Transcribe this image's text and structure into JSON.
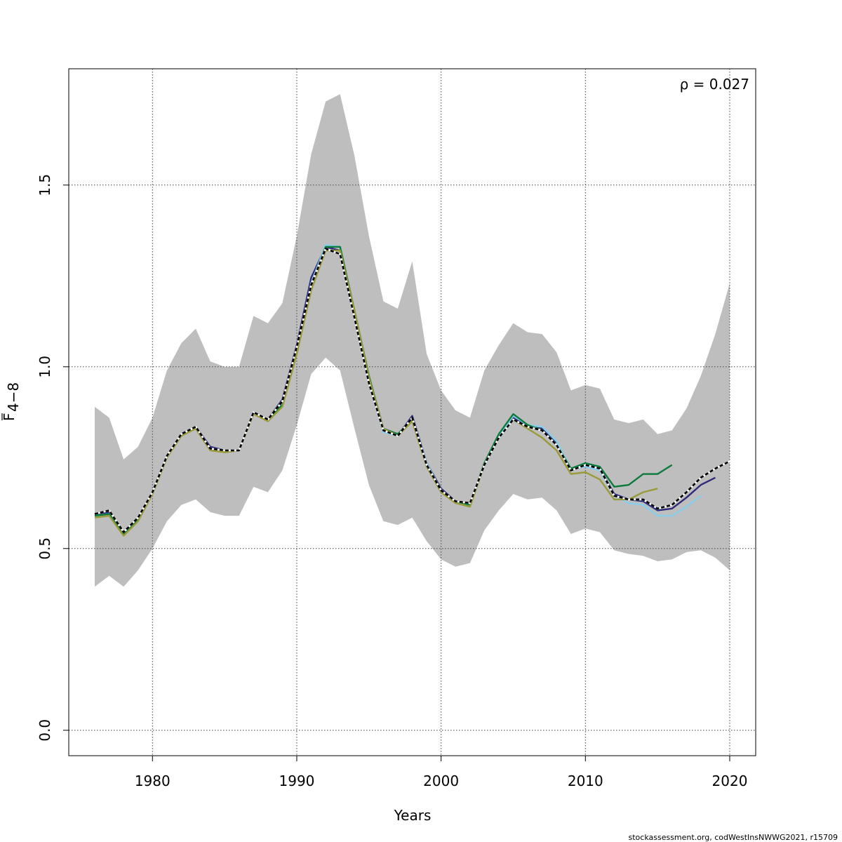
{
  "chart_data": {
    "type": "line",
    "xlabel": "Years",
    "ylabel_main": "F",
    "ylabel_sub": "4−8",
    "annotation": "ρ = 0.027",
    "footer": "stockassessment.org, codWestInsNWWG2021, r15709",
    "xlim": [
      1974.2,
      2021.8
    ],
    "ylim": [
      -0.07,
      1.82
    ],
    "x_ticks": [
      1980,
      1990,
      2000,
      2010,
      2020
    ],
    "x_tick_labels": [
      "1980",
      "1990",
      "2000",
      "2010",
      "2020"
    ],
    "y_ticks": [
      0.0,
      0.5,
      1.0,
      1.5
    ],
    "y_tick_labels": [
      "0.0",
      "0.5",
      "1.0",
      "1.5"
    ],
    "grid": true,
    "band": {
      "color": "#bebebe",
      "years": [
        1976,
        1977,
        1978,
        1979,
        1980,
        1981,
        1982,
        1983,
        1984,
        1985,
        1986,
        1987,
        1988,
        1989,
        1990,
        1991,
        1992,
        1993,
        1994,
        1995,
        1996,
        1997,
        1998,
        1999,
        2000,
        2001,
        2002,
        2003,
        2004,
        2005,
        2006,
        2007,
        2008,
        2009,
        2010,
        2011,
        2012,
        2013,
        2014,
        2015,
        2016,
        2017,
        2018,
        2019,
        2020
      ],
      "upper": [
        0.89,
        0.86,
        0.745,
        0.78,
        0.86,
        0.99,
        1.065,
        1.105,
        1.015,
        1.0,
        1.0,
        1.14,
        1.12,
        1.175,
        1.36,
        1.585,
        1.73,
        1.75,
        1.58,
        1.36,
        1.18,
        1.16,
        1.29,
        1.035,
        0.935,
        0.88,
        0.86,
        0.99,
        1.06,
        1.12,
        1.095,
        1.09,
        1.04,
        0.935,
        0.95,
        0.94,
        0.855,
        0.845,
        0.855,
        0.815,
        0.825,
        0.885,
        0.975,
        1.09,
        1.23
      ],
      "lower": [
        0.395,
        0.425,
        0.395,
        0.44,
        0.5,
        0.575,
        0.62,
        0.635,
        0.6,
        0.59,
        0.59,
        0.67,
        0.655,
        0.715,
        0.84,
        0.98,
        1.025,
        0.99,
        0.83,
        0.675,
        0.575,
        0.565,
        0.585,
        0.52,
        0.47,
        0.45,
        0.46,
        0.55,
        0.605,
        0.65,
        0.635,
        0.64,
        0.605,
        0.54,
        0.555,
        0.545,
        0.495,
        0.485,
        0.48,
        0.465,
        0.47,
        0.49,
        0.495,
        0.475,
        0.44
      ]
    },
    "series": [
      {
        "color": "#000000",
        "dash": true,
        "years": [
          1976,
          1977,
          1978,
          1979,
          1980,
          1981,
          1982,
          1983,
          1984,
          1985,
          1986,
          1987,
          1988,
          1989,
          1990,
          1991,
          1992,
          1993,
          1994,
          1995,
          1996,
          1997,
          1998,
          1999,
          2000,
          2001,
          2002,
          2003,
          2004,
          2005,
          2006,
          2007,
          2008,
          2009,
          2010,
          2011,
          2012,
          2013,
          2014,
          2015,
          2016,
          2017,
          2018,
          2019,
          2020
        ],
        "values": [
          0.595,
          0.605,
          0.545,
          0.585,
          0.655,
          0.755,
          0.815,
          0.835,
          0.775,
          0.77,
          0.77,
          0.875,
          0.855,
          0.905,
          1.055,
          1.225,
          1.325,
          1.31,
          1.135,
          0.955,
          0.825,
          0.81,
          0.86,
          0.73,
          0.66,
          0.63,
          0.625,
          0.73,
          0.805,
          0.855,
          0.835,
          0.825,
          0.785,
          0.715,
          0.73,
          0.72,
          0.645,
          0.635,
          0.635,
          0.61,
          0.62,
          0.655,
          0.695,
          0.72,
          0.74
        ]
      },
      {
        "color": "#2e2b7a",
        "dash": false,
        "years": [
          1976,
          1977,
          1978,
          1979,
          1980,
          1981,
          1982,
          1983,
          1984,
          1985,
          1986,
          1987,
          1988,
          1989,
          1990,
          1991,
          1992,
          1993,
          1994,
          1995,
          1996,
          1997,
          1998,
          1999,
          2000,
          2001,
          2002,
          2003,
          2004,
          2005,
          2006,
          2007,
          2008,
          2009,
          2010,
          2011,
          2012,
          2013,
          2014,
          2015,
          2016,
          2017,
          2018,
          2019
        ],
        "values": [
          0.595,
          0.6,
          0.545,
          0.585,
          0.655,
          0.755,
          0.815,
          0.835,
          0.78,
          0.77,
          0.77,
          0.875,
          0.855,
          0.91,
          1.06,
          1.245,
          1.33,
          1.32,
          1.14,
          0.965,
          0.825,
          0.81,
          0.865,
          0.735,
          0.665,
          0.63,
          0.625,
          0.73,
          0.81,
          0.86,
          0.835,
          0.83,
          0.79,
          0.715,
          0.73,
          0.72,
          0.65,
          0.635,
          0.63,
          0.605,
          0.61,
          0.64,
          0.675,
          0.695
        ]
      },
      {
        "color": "#87ceeb",
        "dash": false,
        "years": [
          1976,
          1977,
          1978,
          1979,
          1980,
          1981,
          1982,
          1983,
          1984,
          1985,
          1986,
          1987,
          1988,
          1989,
          1990,
          1991,
          1992,
          1993,
          1994,
          1995,
          1996,
          1997,
          1998,
          1999,
          2000,
          2001,
          2002,
          2003,
          2004,
          2005,
          2006,
          2007,
          2008,
          2009,
          2010,
          2011,
          2012,
          2013,
          2014,
          2015,
          2016,
          2017,
          2018
        ],
        "values": [
          0.59,
          0.595,
          0.54,
          0.58,
          0.655,
          0.755,
          0.81,
          0.835,
          0.775,
          0.77,
          0.77,
          0.875,
          0.855,
          0.9,
          1.05,
          1.23,
          1.335,
          1.33,
          1.15,
          0.965,
          0.82,
          0.81,
          0.86,
          0.735,
          0.66,
          0.625,
          0.62,
          0.73,
          0.81,
          0.865,
          0.84,
          0.835,
          0.795,
          0.72,
          0.725,
          0.715,
          0.645,
          0.625,
          0.62,
          0.59,
          0.59,
          0.615,
          0.645
        ]
      },
      {
        "color": "#0b7a3a",
        "dash": false,
        "years": [
          1976,
          1977,
          1978,
          1979,
          1980,
          1981,
          1982,
          1983,
          1984,
          1985,
          1986,
          1987,
          1988,
          1989,
          1990,
          1991,
          1992,
          1993,
          1994,
          1995,
          1996,
          1997,
          1998,
          1999,
          2000,
          2001,
          2002,
          2003,
          2004,
          2005,
          2006,
          2007,
          2008,
          2009,
          2010,
          2011,
          2012,
          2013,
          2014,
          2015,
          2016
        ],
        "values": [
          0.59,
          0.595,
          0.54,
          0.58,
          0.655,
          0.755,
          0.81,
          0.835,
          0.775,
          0.765,
          0.77,
          0.875,
          0.855,
          0.895,
          1.05,
          1.22,
          1.33,
          1.33,
          1.155,
          0.975,
          0.83,
          0.815,
          0.855,
          0.73,
          0.66,
          0.63,
          0.62,
          0.735,
          0.815,
          0.87,
          0.84,
          0.825,
          0.785,
          0.72,
          0.735,
          0.725,
          0.67,
          0.675,
          0.705,
          0.705,
          0.73
        ]
      },
      {
        "color": "#9a9a3a",
        "dash": false,
        "years": [
          1976,
          1977,
          1978,
          1979,
          1980,
          1981,
          1982,
          1983,
          1984,
          1985,
          1986,
          1987,
          1988,
          1989,
          1990,
          1991,
          1992,
          1993,
          1994,
          1995,
          1996,
          1997,
          1998,
          1999,
          2000,
          2001,
          2002,
          2003,
          2004,
          2005,
          2006,
          2007,
          2008,
          2009,
          2010,
          2011,
          2012,
          2013,
          2014,
          2015
        ],
        "values": [
          0.585,
          0.59,
          0.535,
          0.575,
          0.65,
          0.75,
          0.81,
          0.83,
          0.77,
          0.765,
          0.77,
          0.87,
          0.85,
          0.89,
          1.035,
          1.21,
          1.32,
          1.32,
          1.155,
          0.97,
          0.83,
          0.81,
          0.85,
          0.725,
          0.655,
          0.625,
          0.615,
          0.73,
          0.805,
          0.855,
          0.83,
          0.805,
          0.77,
          0.705,
          0.71,
          0.69,
          0.635,
          0.635,
          0.655,
          0.665
        ]
      }
    ]
  }
}
